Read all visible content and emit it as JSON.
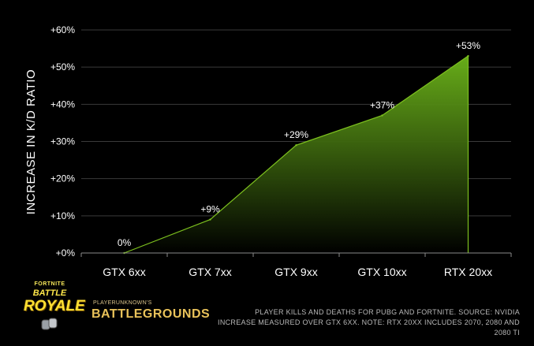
{
  "chart_data": {
    "type": "area",
    "categories": [
      "GTX 6xx",
      "GTX 7xx",
      "GTX 9xx",
      "GTX 10xx",
      "RTX 20xx"
    ],
    "values": [
      0,
      9,
      29,
      37,
      53
    ],
    "data_labels": [
      "0%",
      "+9%",
      "+29%",
      "+37%",
      "+53%"
    ],
    "ylabel": "INCREASE IN K/D RATIO",
    "ylim": [
      0,
      60
    ],
    "yticks": [
      0,
      10,
      20,
      30,
      40,
      50,
      60
    ],
    "ytick_labels": [
      "+0%",
      "+10%",
      "+20%",
      "+30%",
      "+40%",
      "+50%",
      "+60%"
    ],
    "grid": true,
    "colors": {
      "line": "#7dc11e",
      "fill_top": "#6cb51a",
      "fill_bottom": "#000000",
      "grid": "#3a3a3a",
      "axis": "#8a8a8a"
    }
  },
  "logos": {
    "fortnite": {
      "small": "FORTNITE",
      "line1": "BATTLE",
      "line2": "ROYALE"
    },
    "pubg": {
      "small": "PLAYERUNKNOWN'S",
      "main": "BATTLEGROUNDS"
    }
  },
  "footnote": {
    "line1": "PLAYER KILLS AND DEATHS FOR PUBG AND FORTNITE. SOURCE: NVIDIA",
    "line2": "INCREASE MEASURED OVER GTX 6XX. NOTE: RTX 20XX INCLUDES 2070, 2080 AND 2080 TI"
  }
}
